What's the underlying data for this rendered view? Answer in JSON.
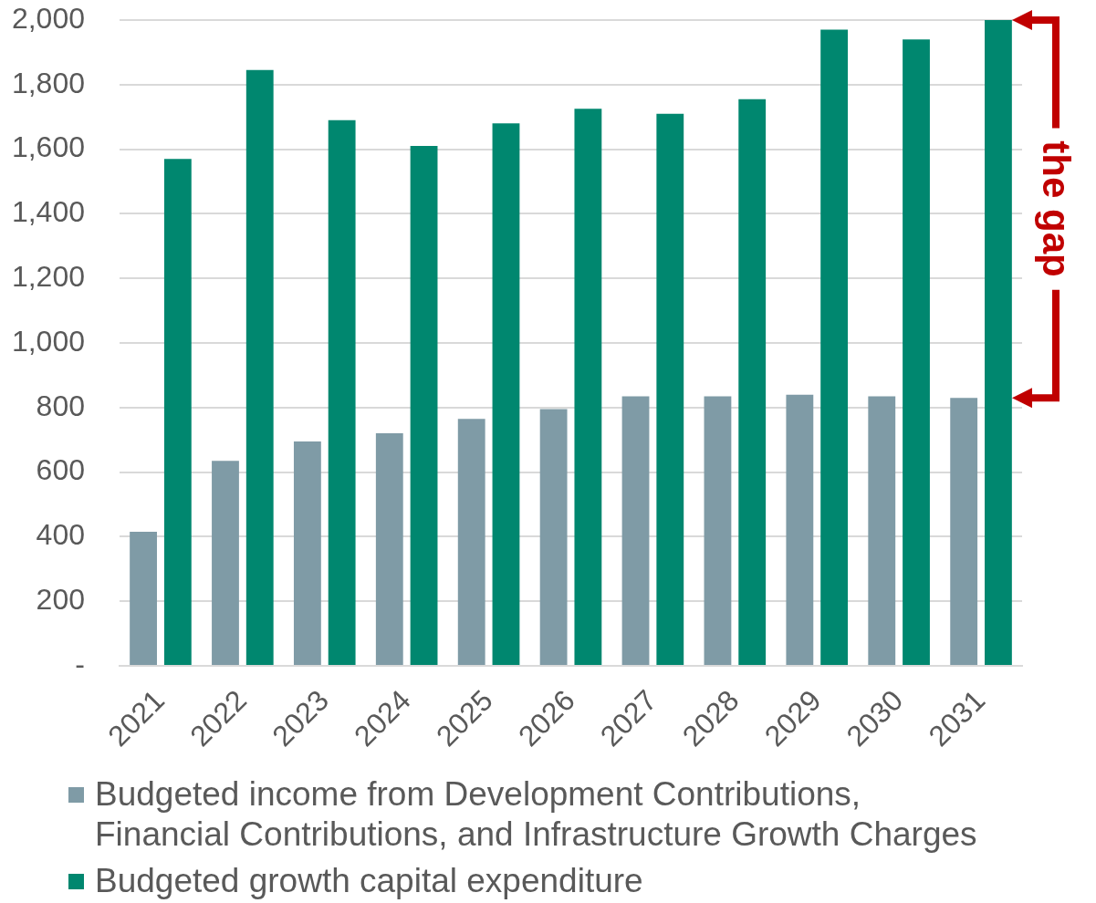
{
  "chart_data": {
    "type": "bar",
    "categories": [
      "2021",
      "2022",
      "2023",
      "2024",
      "2025",
      "2026",
      "2027",
      "2028",
      "2029",
      "2030",
      "2031"
    ],
    "series": [
      {
        "name": "Budgeted income from Development Contributions, Financial Contributions, and Infrastructure Growth Charges",
        "color": "#7f9ba6",
        "values": [
          415,
          635,
          695,
          720,
          765,
          795,
          835,
          835,
          840,
          835,
          830
        ]
      },
      {
        "name": "Budgeted growth capital expenditure",
        "color": "#00876f",
        "values": [
          1570,
          1845,
          1690,
          1610,
          1680,
          1725,
          1710,
          1755,
          1970,
          1940,
          2000
        ]
      }
    ],
    "ylim": [
      0,
      2000
    ],
    "yticks": [
      {
        "value": 0,
        "label": "-"
      },
      200,
      400,
      600,
      800,
      {
        "value": 1000,
        "label": "1,000"
      },
      {
        "value": 1200,
        "label": "1,200"
      },
      {
        "value": 1400,
        "label": "1,400"
      },
      {
        "value": 1600,
        "label": "1,600"
      },
      {
        "value": 1800,
        "label": "1,800"
      },
      {
        "value": 2000,
        "label": "2,000"
      }
    ],
    "grid": "y",
    "legend": "bottom",
    "annotations": [
      {
        "text": "the gap",
        "x": "2031"
      }
    ]
  }
}
